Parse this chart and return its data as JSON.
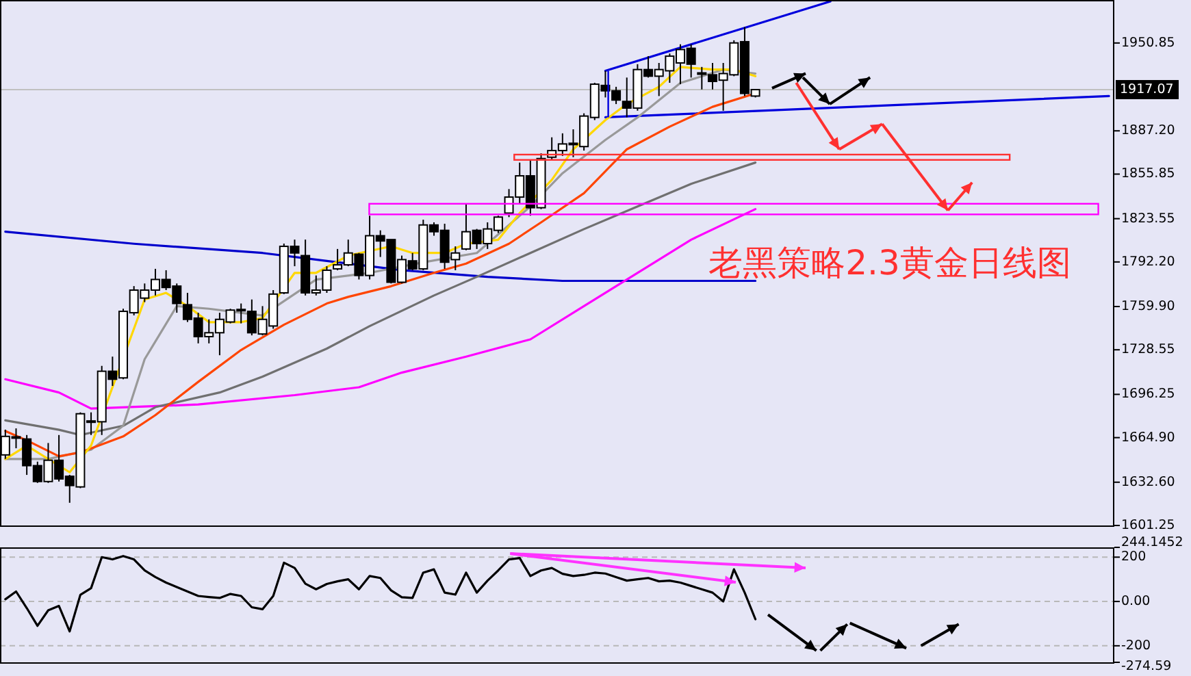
{
  "chart_data": [
    {
      "type": "candlestick",
      "categories": [
        null,
        null,
        null,
        null,
        null,
        null,
        null,
        null,
        null,
        null,
        null,
        null,
        null,
        null,
        null,
        null,
        null,
        null,
        null,
        null,
        null,
        null,
        null,
        null,
        null,
        null,
        null,
        null,
        null,
        null,
        null,
        null,
        null,
        null,
        null,
        null,
        null,
        null,
        null,
        null,
        null,
        null,
        null,
        null,
        null,
        null,
        null,
        null,
        null,
        null,
        null,
        null,
        null,
        null,
        null,
        null,
        null,
        null,
        null,
        null,
        null,
        null,
        null,
        null,
        null,
        null,
        null,
        null,
        null,
        null,
        null,
        null,
        null,
        null,
        null,
        null,
        null,
        null,
        null,
        null,
        null,
        null,
        null,
        null,
        null,
        null,
        null,
        null,
        null,
        null,
        null,
        null,
        null,
        null,
        null,
        null,
        null,
        null,
        null,
        null,
        null,
        null,
        null,
        null
      ],
      "ohlc": [
        [
          1652.4,
          1670.7,
          1649.5,
          1665.8
        ],
        [
          1664.9,
          1671.6,
          1657.2,
          1665.5
        ],
        [
          1663.9,
          1666.8,
          1637.9,
          1644.6
        ],
        [
          1644.6,
          1647.5,
          1632.1,
          1633.1
        ],
        [
          1633.1,
          1661.0,
          1632.1,
          1648.5
        ],
        [
          1648.5,
          1666.8,
          1633.1,
          1635.0
        ],
        [
          1636.9,
          1637.9,
          1617.7,
          1630.2
        ],
        [
          1629.2,
          1683.2,
          1628.3,
          1682.2
        ],
        [
          1676.4,
          1683.2,
          1666.8,
          1677.0
        ],
        [
          1676.4,
          1716.9,
          1666.8,
          1713.0
        ],
        [
          1713.0,
          1723.6,
          1702.4,
          1707.2
        ],
        [
          1708.2,
          1758.3,
          1707.2,
          1756.4
        ],
        [
          1755.4,
          1774.7,
          1753.5,
          1771.8
        ],
        [
          1766.0,
          1776.6,
          1763.1,
          1771.8
        ],
        [
          1771.8,
          1787.2,
          1767.9,
          1779.5
        ],
        [
          1779.5,
          1786.2,
          1771.8,
          1773.7
        ],
        [
          1774.7,
          1776.6,
          1755.4,
          1762.1
        ],
        [
          1761.2,
          1769.8,
          1748.7,
          1750.6
        ],
        [
          1751.5,
          1755.4,
          1733.2,
          1738.1
        ],
        [
          1738.1,
          1750.6,
          1733.2,
          1740.9
        ],
        [
          1740.9,
          1755.4,
          1724.6,
          1750.6
        ],
        [
          1748.7,
          1758.3,
          1747.7,
          1757.3
        ],
        [
          1757.3,
          1762.1,
          1747.7,
          1757.8
        ],
        [
          1756.4,
          1765.0,
          1739.0,
          1740.9
        ],
        [
          1740.0,
          1760.2,
          1739.0,
          1750.6
        ],
        [
          1745.8,
          1771.8,
          1743.8,
          1768.9
        ],
        [
          1769.8,
          1805.5,
          1768.9,
          1803.5
        ],
        [
          1803.5,
          1808.4,
          1789.1,
          1798.7
        ],
        [
          1796.8,
          1808.4,
          1767.9,
          1769.8
        ],
        [
          1769.8,
          1782.4,
          1767.9,
          1771.8
        ],
        [
          1771.8,
          1789.1,
          1769.8,
          1786.2
        ],
        [
          1787.2,
          1801.6,
          1786.2,
          1790.1
        ],
        [
          1790.1,
          1808.4,
          1789.1,
          1798.7
        ],
        [
          1797.8,
          1798.7,
          1779.5,
          1782.4
        ],
        [
          1782.4,
          1825.7,
          1779.5,
          1811.2
        ],
        [
          1811.2,
          1815.1,
          1795.8,
          1807.4
        ],
        [
          1808.4,
          1808.4,
          1776.6,
          1777.5
        ],
        [
          1777.5,
          1796.8,
          1776.6,
          1793.9
        ],
        [
          1793.0,
          1798.7,
          1786.2,
          1787.2
        ],
        [
          1787.2,
          1822.8,
          1786.2,
          1819.0
        ],
        [
          1819.0,
          1820.9,
          1811.2,
          1814.1
        ],
        [
          1815.1,
          1819.9,
          1787.2,
          1792.0
        ],
        [
          1793.9,
          1803.5,
          1786.2,
          1798.7
        ],
        [
          1801.6,
          1834.4,
          1800.7,
          1814.1
        ],
        [
          1815.1,
          1816.1,
          1801.6,
          1805.5
        ],
        [
          1805.5,
          1820.9,
          1801.6,
          1816.1
        ],
        [
          1815.1,
          1825.7,
          1813.2,
          1824.7
        ],
        [
          1827.6,
          1845.0,
          1824.7,
          1839.2
        ],
        [
          1839.2,
          1864.2,
          1834.4,
          1854.6
        ],
        [
          1854.6,
          1866.1,
          1825.7,
          1831.5
        ],
        [
          1831.5,
          1870.9,
          1830.5,
          1867.1
        ],
        [
          1868.1,
          1882.5,
          1866.1,
          1872.9
        ],
        [
          1872.9,
          1885.4,
          1869.0,
          1877.7
        ],
        [
          1877.7,
          1888.3,
          1868.1,
          1878.2
        ],
        [
          1875.8,
          1899.9,
          1872.9,
          1897.9
        ],
        [
          1896.9,
          1922.0,
          1895.0,
          1921.0
        ],
        [
          1920.1,
          1930.7,
          1911.4,
          1916.2
        ],
        [
          1916.2,
          1919.1,
          1906.6,
          1909.5
        ],
        [
          1908.5,
          1925.8,
          1897.0,
          1903.7
        ],
        [
          1903.7,
          1935.5,
          1901.8,
          1931.6
        ],
        [
          1931.6,
          1941.3,
          1925.8,
          1926.8
        ],
        [
          1926.8,
          1936.4,
          1912.4,
          1931.6
        ],
        [
          1930.7,
          1943.2,
          1922.0,
          1941.3
        ],
        [
          1936.4,
          1949.9,
          1921.0,
          1946.1
        ],
        [
          1947.0,
          1949.9,
          1925.8,
          1935.5
        ],
        [
          1928.7,
          1933.5,
          1917.2,
          1929.2
        ],
        [
          1927.8,
          1936.4,
          1917.2,
          1923.0
        ],
        [
          1923.9,
          1936.4,
          1901.8,
          1928.7
        ],
        [
          1927.8,
          1952.8,
          1926.8,
          1950.9
        ],
        [
          1951.8,
          1962.4,
          1912.4,
          1914.3
        ],
        [
          1912.4,
          1917.2,
          1911.4,
          1917.07
        ],
        null,
        null,
        null,
        null,
        null,
        null,
        null,
        null,
        null,
        null,
        null,
        null,
        null,
        null,
        null,
        null,
        null,
        null,
        null,
        null,
        null,
        null,
        null,
        null,
        null,
        null,
        null,
        null,
        null,
        null,
        null,
        null,
        null
      ],
      "series": [
        {
          "type": "line",
          "color": "#0000dd",
          "values": [
            null,
            null,
            null,
            null,
            null,
            null,
            null,
            null,
            null,
            null,
            null,
            null,
            null,
            null,
            null,
            null,
            null,
            null,
            null,
            null,
            null,
            null,
            null,
            null,
            null,
            null,
            null,
            null,
            null,
            null,
            null,
            null,
            null,
            null,
            null,
            null,
            null,
            null,
            null,
            null,
            null,
            null,
            null,
            null,
            null,
            null,
            null,
            null,
            null,
            null,
            null,
            null,
            null,
            null,
            null,
            null,
            1930.7,
            null,
            null,
            null,
            null,
            null,
            null,
            null,
            null,
            null,
            null,
            null,
            null,
            null,
            null,
            null,
            null,
            null,
            null,
            null,
            null,
            1981,
            null,
            null,
            null,
            null,
            null,
            null,
            null,
            null,
            null,
            null,
            null,
            null,
            null,
            null,
            null,
            null,
            null,
            null,
            null,
            null,
            null,
            null,
            null,
            null,
            null,
            null
          ]
        },
        {
          "type": "line",
          "color": "#0000dd",
          "values": [
            null,
            null,
            null,
            null,
            null,
            null,
            null,
            null,
            null,
            null,
            null,
            null,
            null,
            null,
            null,
            null,
            null,
            null,
            null,
            null,
            null,
            null,
            null,
            null,
            null,
            null,
            null,
            null,
            null,
            null,
            null,
            null,
            null,
            null,
            null,
            null,
            null,
            null,
            null,
            null,
            null,
            null,
            null,
            null,
            null,
            null,
            null,
            null,
            null,
            null,
            null,
            null,
            null,
            null,
            null,
            null,
            1897.0,
            null,
            null,
            null,
            null,
            null,
            null,
            null,
            null,
            null,
            null,
            null,
            null,
            null,
            null,
            null,
            null,
            null,
            null,
            null,
            null,
            null,
            null,
            null,
            null,
            null,
            null,
            null,
            null,
            null,
            null,
            null,
            null,
            null,
            null,
            null,
            null,
            null,
            null,
            null,
            null,
            null,
            null,
            null,
            null,
            null,
            null,
            1912.4
          ]
        },
        {
          "type": "line",
          "color": "#0000cc",
          "values": [
            1814.1,
            null,
            null,
            null,
            null,
            null,
            null,
            null,
            null,
            null,
            null,
            null,
            1805.4,
            null,
            null,
            null,
            null,
            null,
            null,
            null,
            null,
            null,
            null,
            null,
            1798.7,
            null,
            null,
            null,
            null,
            null,
            1792.9,
            null,
            null,
            null,
            null,
            null,
            null,
            1786.2,
            null,
            null,
            null,
            null,
            null,
            null,
            null,
            1781.4,
            null,
            null,
            null,
            null,
            null,
            null,
            1778.5,
            null,
            null,
            null,
            null,
            null,
            null,
            null,
            null,
            null,
            null,
            null,
            null,
            null,
            null,
            null,
            null,
            null,
            1778.5,
            null,
            null,
            null,
            null,
            null,
            null,
            null,
            null,
            null,
            null,
            null,
            null,
            null,
            null,
            null,
            null,
            null,
            null,
            null,
            null,
            null,
            null,
            null,
            null,
            null,
            null,
            null,
            null,
            null,
            null,
            null,
            null,
            null
          ]
        },
        {
          "type": "line",
          "color": "#ff00ff",
          "values": [
            1707.2,
            null,
            null,
            null,
            null,
            1697.6,
            null,
            null,
            1686.0,
            null,
            null,
            null,
            null,
            null,
            null,
            null,
            null,
            null,
            1688.9,
            null,
            null,
            null,
            null,
            null,
            null,
            null,
            null,
            1695.7,
            null,
            null,
            null,
            null,
            null,
            1701.4,
            null,
            null,
            null,
            1712.0,
            null,
            null,
            null,
            null,
            null,
            1723.6,
            null,
            null,
            null,
            null,
            null,
            1736.1,
            null,
            null,
            null,
            null,
            1760.2,
            null,
            null,
            null,
            null,
            1784.3,
            null,
            null,
            null,
            null,
            1808.3,
            null,
            null,
            null,
            null,
            null,
            1830.5,
            null,
            null,
            null,
            null,
            null,
            null,
            null,
            null,
            null,
            null,
            null,
            null,
            null,
            null,
            null,
            null,
            null,
            null,
            null,
            null,
            null,
            null,
            null,
            null,
            null,
            null,
            null,
            null,
            null,
            null,
            null,
            null,
            null
          ]
        },
        {
          "type": "line",
          "color": "#707070",
          "values": [
            1677.4,
            null,
            null,
            null,
            null,
            1670.6,
            null,
            1666.8,
            null,
            null,
            null,
            1673.5,
            null,
            null,
            1687.0,
            null,
            null,
            null,
            null,
            null,
            1697.6,
            null,
            null,
            null,
            1709.1,
            null,
            null,
            null,
            null,
            null,
            1729.4,
            null,
            null,
            null,
            1745.7,
            null,
            null,
            null,
            null,
            null,
            1767.9,
            null,
            null,
            null,
            1781.4,
            null,
            null,
            null,
            null,
            1798.7,
            null,
            null,
            null,
            null,
            1816.0,
            null,
            null,
            null,
            null,
            1832.4,
            null,
            null,
            null,
            null,
            1848.8,
            null,
            null,
            null,
            null,
            null,
            1864.2,
            null,
            null,
            null,
            null,
            null,
            null,
            null,
            null,
            null,
            null,
            null,
            null,
            null,
            null,
            null,
            null,
            null,
            null,
            null,
            null,
            null,
            null,
            null,
            null,
            null,
            null,
            null,
            null,
            null,
            null,
            null,
            null,
            null
          ]
        },
        {
          "type": "line",
          "color": "#999999",
          "values": [
            1649.4,
            null,
            null,
            null,
            1649.4,
            null,
            null,
            null,
            1656.2,
            null,
            null,
            1673.5,
            null,
            1721.7,
            null,
            null,
            1760.2,
            null,
            null,
            1758.3,
            null,
            null,
            null,
            null,
            1753.4,
            null,
            null,
            null,
            null,
            1779.4,
            null,
            null,
            null,
            null,
            1784.3,
            null,
            null,
            null,
            null,
            1791.9,
            null,
            null,
            null,
            null,
            1798.7,
            null,
            null,
            null,
            null,
            1832.4,
            null,
            null,
            1856.5,
            null,
            null,
            null,
            1880.6,
            null,
            null,
            1896.9,
            null,
            null,
            null,
            1921.9,
            null,
            null,
            null,
            1931.6,
            null,
            null,
            1928.7,
            null,
            null,
            null,
            null,
            null,
            null,
            null,
            null,
            null,
            null,
            null,
            null,
            null,
            null,
            null,
            null,
            null,
            null,
            null,
            null,
            null,
            null,
            null,
            null,
            null,
            null,
            null,
            null,
            null,
            null,
            null,
            null,
            null
          ]
        },
        {
          "type": "line",
          "color": "#ff4500",
          "values": [
            1669.7,
            null,
            1662.9,
            null,
            null,
            1651.4,
            null,
            1654.2,
            null,
            null,
            null,
            1665.8,
            null,
            null,
            1681.2,
            null,
            null,
            null,
            1705.3,
            null,
            null,
            null,
            1728.4,
            null,
            null,
            null,
            1746.7,
            null,
            null,
            null,
            1762.1,
            null,
            1766.9,
            null,
            null,
            null,
            1774.6,
            null,
            null,
            null,
            1784.3,
            null,
            null,
            1791.0,
            null,
            null,
            null,
            1805.4,
            null,
            null,
            1820.9,
            null,
            null,
            null,
            1842.0,
            null,
            null,
            null,
            1873.8,
            null,
            null,
            null,
            1890.2,
            null,
            null,
            null,
            1904.6,
            null,
            null,
            null,
            1914.3,
            null,
            null,
            null,
            null,
            null,
            null,
            null,
            null,
            null,
            null,
            null,
            null,
            null,
            null,
            null,
            null,
            null,
            null,
            null,
            null,
            null,
            null,
            null,
            null,
            null,
            null,
            null,
            null,
            null,
            null,
            null,
            null,
            null
          ]
        },
        {
          "type": "line",
          "color": "#ffd700",
          "values": [
            1649.4,
            null,
            1659.1,
            null,
            null,
            null,
            1639.8,
            null,
            1659.1,
            null,
            null,
            null,
            null,
            1765.0,
            null,
            1769.8,
            null,
            1760.2,
            null,
            1748.6,
            null,
            null,
            1748.6,
            null,
            1751.5,
            null,
            null,
            1784.3,
            null,
            1784.3,
            null,
            null,
            1796.8,
            null,
            null,
            null,
            1803.5,
            null,
            1798.7,
            null,
            null,
            1798.7,
            null,
            1805.4,
            null,
            null,
            1808.3,
            null,
            1827.6,
            null,
            null,
            1851.7,
            null,
            1873.8,
            null,
            null,
            1895.0,
            null,
            1906.6,
            null,
            null,
            1919.1,
            null,
            1933.5,
            null,
            null,
            1931.6,
            null,
            1931.6,
            null,
            1926.8,
            null,
            null,
            null,
            null,
            null,
            null,
            null,
            null,
            null,
            null,
            null,
            null,
            null,
            null,
            null,
            null,
            null,
            null,
            null,
            null,
            null,
            null,
            null,
            null,
            null,
            null,
            null,
            null,
            null,
            null,
            null,
            null,
            null
          ]
        }
      ],
      "ylim": [
        1601.25,
        1982
      ],
      "yticks": [
        {
          "value": 1601.25,
          "label": "1601.25"
        },
        {
          "value": 1632.6,
          "label": "1632.60"
        },
        {
          "value": 1664.9,
          "label": "1664.90"
        },
        {
          "value": 1696.25,
          "label": "1696.25"
        },
        {
          "value": 1728.55,
          "label": "1728.55"
        },
        {
          "value": 1759.9,
          "label": "1759.90"
        },
        {
          "value": 1792.2,
          "label": "1792.20"
        },
        {
          "value": 1823.55,
          "label": "1823.55"
        },
        {
          "value": 1855.85,
          "label": "1855.85"
        },
        {
          "value": 1887.2,
          "label": "1887.20"
        },
        {
          "value": 1950.85,
          "label": "1950.85"
        }
      ],
      "ref_lines": [
        {
          "axis": "y",
          "value": 1917.07,
          "label": "1917.07",
          "color": "#c0c0c0"
        }
      ],
      "annotations": [
        "老黑策略2.3黄金日线图"
      ]
    },
    {
      "type": "line",
      "categories": [
        null,
        null,
        null,
        null,
        null,
        null,
        null,
        null,
        null,
        null,
        null,
        null,
        null,
        null,
        null,
        null,
        null,
        null,
        null,
        null,
        null,
        null,
        null,
        null,
        null,
        null,
        null,
        null,
        null,
        null,
        null,
        null,
        null,
        null,
        null,
        null,
        null,
        null,
        null,
        null,
        null,
        null,
        null,
        null,
        null,
        null,
        null,
        null,
        null,
        null,
        null,
        null,
        null,
        null,
        null,
        null,
        null,
        null,
        null,
        null,
        null,
        null,
        null,
        null,
        null,
        null,
        null,
        null,
        null,
        null,
        null,
        null,
        null,
        null,
        null,
        null,
        null,
        null,
        null,
        null,
        null,
        null,
        null,
        null,
        null,
        null,
        null,
        null,
        null,
        null,
        null,
        null,
        null,
        null,
        null,
        null,
        null,
        null,
        null,
        null,
        null,
        null,
        null,
        null
      ],
      "values": [
        10,
        45,
        -30,
        -110,
        -40,
        -20,
        -135,
        30,
        60,
        200,
        190,
        205,
        190,
        140,
        110,
        85,
        65,
        45,
        25,
        20,
        16,
        34,
        25,
        -26,
        -35,
        25,
        175,
        151,
        80,
        55,
        79,
        91,
        100,
        55,
        115,
        106,
        50,
        19,
        16,
        130,
        145,
        40,
        31,
        130,
        40,
        94,
        140,
        190,
        196,
        115,
        140,
        151,
        125,
        115,
        120,
        130,
        126,
        110,
        94,
        100,
        106,
        91,
        94,
        85,
        70,
        55,
        40,
        0,
        145,
        40,
        -80,
        null,
        null,
        null,
        null,
        null,
        null,
        null,
        null,
        null,
        null,
        null,
        null,
        null,
        null,
        null,
        null,
        null,
        null,
        null,
        null,
        null,
        null,
        null,
        null,
        null,
        null,
        null,
        null,
        null,
        null,
        null,
        null,
        null
      ],
      "color": "#000000",
      "ylim": [
        -274.59,
        244.1452
      ],
      "yticks": [
        {
          "value": -274.59,
          "label": "-274.59"
        },
        -200,
        {
          "value": 0,
          "label": "0.00"
        },
        200,
        {
          "value": 244.1452,
          "label": "244.1452"
        }
      ],
      "grid": "y"
    }
  ]
}
